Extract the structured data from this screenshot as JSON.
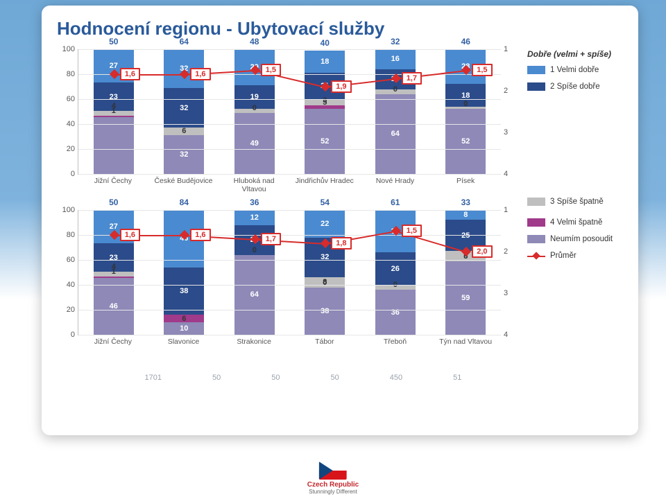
{
  "title": "Hodnocení regionu - Ubytovací služby",
  "colors": {
    "seg1_velmi_dobre": "#4a8ad0",
    "seg2_spise_dobre": "#2b4b8a",
    "seg3_spise_spatne": "#bfbfbf",
    "seg4_velmi_spatne": "#a03a8a",
    "seg_neumim": "#8e89b7",
    "avg_line": "#d82b2b",
    "title_color": "#2a5a9a",
    "grid": "#e6e6e6",
    "top_label": "#3260a4"
  },
  "y_axis_left": {
    "min": 0,
    "max": 100,
    "step": 20,
    "ticks": [
      0,
      20,
      40,
      60,
      80,
      100
    ]
  },
  "y_axis_right": {
    "min": 1,
    "max": 4,
    "step": 1,
    "ticks": [
      1,
      2,
      3,
      4
    ]
  },
  "legend": {
    "header": "Dobře (velmi + spíše)",
    "items": [
      {
        "key": "seg1_velmi_dobre",
        "label": "1 Velmi dobře"
      },
      {
        "key": "seg2_spise_dobre",
        "label": "2 Spíše dobře"
      },
      {
        "key": "seg3_spise_spatne",
        "label": "3 Spíše špatně"
      },
      {
        "key": "seg4_velmi_spatne",
        "label": "4 Velmi špatně"
      },
      {
        "key": "seg_neumim",
        "label": "Neumím posoudit"
      },
      {
        "key": "avg",
        "label": "Průměr"
      }
    ]
  },
  "chart1": {
    "categories": [
      "Jižní Čechy",
      "České Budějovice",
      "Hluboká nad Vltavou",
      "Jindřichův Hradec",
      "Nové Hrady",
      "Písek"
    ],
    "top_totals": [
      50,
      64,
      48,
      40,
      32,
      46
    ],
    "averages": [
      1.6,
      1.6,
      1.5,
      1.9,
      1.7,
      1.5
    ],
    "avg_labels": [
      "1,6",
      "1,6",
      "1,5",
      "1,9",
      "1,7",
      "1,5"
    ],
    "stacks": [
      [
        {
          "v": 46,
          "k": "seg_neumim"
        },
        {
          "v": 1,
          "k": "seg4_velmi_spatne",
          "text": "1",
          "light": true,
          "hidelabel": false
        },
        {
          "v": 4,
          "k": "seg3_spise_spatne",
          "text": "4",
          "light": true
        },
        {
          "v": 23,
          "k": "seg2_spise_dobre",
          "text": "23"
        },
        {
          "v": 27,
          "k": "seg1_velmi_dobre",
          "text": "27"
        }
      ],
      [
        {
          "v": 32,
          "k": "seg_neumim",
          "text": "32"
        },
        {
          "v": 0,
          "k": "seg4_velmi_spatne"
        },
        {
          "v": 6,
          "k": "seg3_spise_spatne",
          "text": "6",
          "light": true
        },
        {
          "v": 32,
          "k": "seg2_spise_dobre",
          "text": "32"
        },
        {
          "v": 32,
          "k": "seg1_velmi_dobre",
          "text": "32"
        }
      ],
      [
        {
          "v": 49,
          "k": "seg_neumim",
          "text": "49"
        },
        {
          "v": 0,
          "k": "seg4_velmi_spatne",
          "text": "0",
          "light": true
        },
        {
          "v": 3,
          "k": "seg3_spise_spatne",
          "light": true
        },
        {
          "v": 19,
          "k": "seg2_spise_dobre",
          "text": "19"
        },
        {
          "v": 29,
          "k": "seg1_velmi_dobre",
          "text": "29"
        }
      ],
      [
        {
          "v": 52,
          "k": "seg_neumim",
          "text": "52"
        },
        {
          "v": 3,
          "k": "seg4_velmi_spatne",
          "text": "3",
          "light": true
        },
        {
          "v": 5,
          "k": "seg3_spise_spatne",
          "text": "5",
          "light": true
        },
        {
          "v": 21,
          "k": "seg2_spise_dobre",
          "text": "21"
        },
        {
          "v": 18,
          "k": "seg1_velmi_dobre",
          "text": "18"
        }
      ],
      [
        {
          "v": 64,
          "k": "seg_neumim",
          "text": "64"
        },
        {
          "v": 0,
          "k": "seg4_velmi_spatne",
          "text": "0",
          "light": true
        },
        {
          "v": 4,
          "k": "seg3_spise_spatne",
          "light": true
        },
        {
          "v": 16,
          "k": "seg2_spise_dobre",
          "text": "16"
        },
        {
          "v": 16,
          "k": "seg1_velmi_dobre",
          "text": "16"
        }
      ],
      [
        {
          "v": 52,
          "k": "seg_neumim",
          "text": "52"
        },
        {
          "v": 0,
          "k": "seg4_velmi_spatne",
          "text": "0",
          "light": true
        },
        {
          "v": 2,
          "k": "seg3_spise_spatne",
          "light": true
        },
        {
          "v": 18,
          "k": "seg2_spise_dobre",
          "text": "18"
        },
        {
          "v": 28,
          "k": "seg1_velmi_dobre",
          "text": "28"
        }
      ]
    ]
  },
  "chart2": {
    "categories": [
      "Jižní Čechy",
      "Slavonice",
      "Strakonice",
      "Tábor",
      "Třeboň",
      "Týn nad Vltavou"
    ],
    "top_totals": [
      50,
      84,
      36,
      54,
      61,
      33
    ],
    "averages": [
      1.6,
      1.6,
      1.7,
      1.8,
      1.5,
      2.0
    ],
    "avg_labels": [
      "1,6",
      "1,6",
      "1,7",
      "1,8",
      "1,5",
      "2,0"
    ],
    "stacks": [
      [
        {
          "v": 46,
          "k": "seg_neumim",
          "text": "46"
        },
        {
          "v": 1,
          "k": "seg4_velmi_spatne",
          "light": true,
          "text": "1"
        },
        {
          "v": 4,
          "k": "seg3_spise_spatne",
          "light": true,
          "text": "4"
        },
        {
          "v": 23,
          "k": "seg2_spise_dobre",
          "text": "23"
        },
        {
          "v": 27,
          "k": "seg1_velmi_dobre",
          "text": "27"
        }
      ],
      [
        {
          "v": 10,
          "k": "seg_neumim",
          "text": "10"
        },
        {
          "v": 6,
          "k": "seg4_velmi_spatne",
          "text": "6",
          "light": true
        },
        {
          "v": 0,
          "k": "seg3_spise_spatne"
        },
        {
          "v": 38,
          "k": "seg2_spise_dobre",
          "text": "38"
        },
        {
          "v": 46,
          "k": "seg1_velmi_dobre",
          "text": "46"
        }
      ],
      [
        {
          "v": 64,
          "k": "seg_neumim",
          "text": "64"
        },
        {
          "v": 0,
          "k": "seg4_velmi_spatne",
          "text": "0",
          "light": true
        },
        {
          "v": 0,
          "k": "seg3_spise_spatne"
        },
        {
          "v": 24,
          "k": "seg2_spise_dobre",
          "text": "24"
        },
        {
          "v": 12,
          "k": "seg1_velmi_dobre",
          "text": "12"
        }
      ],
      [
        {
          "v": 38,
          "k": "seg_neumim",
          "text": "38"
        },
        {
          "v": 0,
          "k": "seg4_velmi_spatne",
          "text": "0",
          "light": true
        },
        {
          "v": 8,
          "k": "seg3_spise_spatne",
          "text": "8",
          "light": true
        },
        {
          "v": 32,
          "k": "seg2_spise_dobre",
          "text": "32"
        },
        {
          "v": 22,
          "k": "seg1_velmi_dobre",
          "text": "22"
        }
      ],
      [
        {
          "v": 36,
          "k": "seg_neumim",
          "text": "36"
        },
        {
          "v": 0,
          "k": "seg4_velmi_spatne",
          "text": "0",
          "light": true
        },
        {
          "v": 4,
          "k": "seg3_spise_spatne",
          "light": true
        },
        {
          "v": 26,
          "k": "seg2_spise_dobre",
          "text": "26"
        },
        {
          "v": 34,
          "k": "seg1_velmi_dobre",
          "text": "34"
        }
      ],
      [
        {
          "v": 59,
          "k": "seg_neumim",
          "text": "59"
        },
        {
          "v": 0,
          "k": "seg4_velmi_spatne",
          "text": "0",
          "light": true
        },
        {
          "v": 8,
          "k": "seg3_spise_spatne",
          "text": "8",
          "light": true
        },
        {
          "v": 25,
          "k": "seg2_spise_dobre",
          "text": "25"
        },
        {
          "v": 8,
          "k": "seg1_velmi_dobre",
          "text": "8"
        }
      ]
    ]
  },
  "footer_numbers": [
    "1701",
    "50",
    "50",
    "50",
    "450",
    "51"
  ],
  "logo": {
    "title": "Czech Republic",
    "subtitle": "Stunningly Different"
  }
}
